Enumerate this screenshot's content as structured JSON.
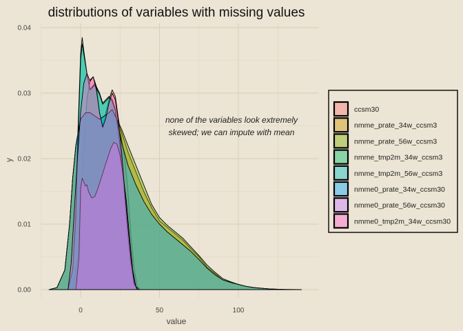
{
  "chart_data": {
    "type": "area",
    "title": "distributions of variables with missing values",
    "xlabel": "value",
    "ylabel": "y",
    "xlim": [
      -25,
      145
    ],
    "ylim": [
      0,
      0.041
    ],
    "xticks": [
      "0",
      "50",
      "100"
    ],
    "xtick_values": [
      0,
      50,
      100
    ],
    "yticks": [
      "0.00",
      "0.01",
      "0.02",
      "0.03",
      "0.04"
    ],
    "ytick_values": [
      0,
      0.01,
      0.02,
      0.03,
      0.04
    ],
    "grid": true,
    "legend_position": "right",
    "annotation": [
      "none of the variables look extremely",
      "skewed; we can impute with mean"
    ],
    "series": [
      {
        "name": "ccsm30",
        "color": "#f8766d",
        "points": [
          [
            -5,
            0
          ],
          [
            -2,
            0.004
          ],
          [
            0,
            0.012
          ],
          [
            2,
            0.022
          ],
          [
            4,
            0.029
          ],
          [
            6,
            0.032
          ],
          [
            8,
            0.0325
          ],
          [
            10,
            0.031
          ],
          [
            12,
            0.027
          ],
          [
            14,
            0.025
          ],
          [
            16,
            0.027
          ],
          [
            18,
            0.029
          ],
          [
            20,
            0.0305
          ],
          [
            22,
            0.0295
          ],
          [
            24,
            0.026
          ],
          [
            26,
            0.023
          ],
          [
            28,
            0.02
          ],
          [
            30,
            0.015
          ],
          [
            32,
            0.008
          ],
          [
            34,
            0.003
          ],
          [
            36,
            0.0005
          ],
          [
            38,
            0
          ]
        ]
      },
      {
        "name": "nmme_prate_34w_ccsm3",
        "color": "#cd9600",
        "points": [
          [
            -20,
            0
          ],
          [
            -15,
            0.0003
          ],
          [
            -10,
            0.003
          ],
          [
            -7,
            0.01
          ],
          [
            -5,
            0.017
          ],
          [
            -3,
            0.022
          ],
          [
            0,
            0.026
          ],
          [
            3,
            0.027
          ],
          [
            6,
            0.027
          ],
          [
            9,
            0.0265
          ],
          [
            12,
            0.026
          ],
          [
            15,
            0.0265
          ],
          [
            18,
            0.027
          ],
          [
            20,
            0.0275
          ],
          [
            23,
            0.026
          ],
          [
            26,
            0.024
          ],
          [
            30,
            0.021
          ],
          [
            35,
            0.018
          ],
          [
            40,
            0.015
          ],
          [
            45,
            0.0125
          ],
          [
            50,
            0.0105
          ],
          [
            55,
            0.0095
          ],
          [
            60,
            0.0085
          ],
          [
            65,
            0.0075
          ],
          [
            70,
            0.0062
          ],
          [
            75,
            0.005
          ],
          [
            80,
            0.0035
          ],
          [
            85,
            0.0025
          ],
          [
            90,
            0.0015
          ],
          [
            95,
            0.0011
          ],
          [
            100,
            0.0008
          ],
          [
            105,
            0.0005
          ],
          [
            110,
            0.0003
          ],
          [
            115,
            0.0002
          ],
          [
            120,
            0.0001
          ],
          [
            125,
            5e-05
          ],
          [
            130,
            2e-05
          ],
          [
            140,
            0
          ]
        ]
      },
      {
        "name": "nmme_prate_56w_ccsm3",
        "color": "#7cae00",
        "points": [
          [
            -20,
            0
          ],
          [
            -15,
            0.0003
          ],
          [
            -10,
            0.003
          ],
          [
            -7,
            0.01
          ],
          [
            -5,
            0.017
          ],
          [
            -3,
            0.022
          ],
          [
            0,
            0.026
          ],
          [
            3,
            0.027
          ],
          [
            6,
            0.027
          ],
          [
            9,
            0.0265
          ],
          [
            12,
            0.026
          ],
          [
            15,
            0.0265
          ],
          [
            18,
            0.027
          ],
          [
            20,
            0.0275
          ],
          [
            23,
            0.026
          ],
          [
            26,
            0.0245
          ],
          [
            30,
            0.022
          ],
          [
            35,
            0.019
          ],
          [
            40,
            0.016
          ],
          [
            45,
            0.013
          ],
          [
            50,
            0.011
          ],
          [
            55,
            0.0098
          ],
          [
            60,
            0.0088
          ],
          [
            65,
            0.0078
          ],
          [
            70,
            0.0065
          ],
          [
            75,
            0.0052
          ],
          [
            80,
            0.0038
          ],
          [
            85,
            0.0027
          ],
          [
            90,
            0.0017
          ],
          [
            95,
            0.0012
          ],
          [
            100,
            0.0008
          ],
          [
            105,
            0.0005
          ],
          [
            110,
            0.0003
          ],
          [
            115,
            0.0002
          ],
          [
            120,
            0.0001
          ],
          [
            125,
            5e-05
          ],
          [
            130,
            2e-05
          ],
          [
            140,
            0
          ]
        ]
      },
      {
        "name": "nmme_tmp2m_34w_ccsm3",
        "color": "#00be67",
        "points": [
          [
            -8,
            0
          ],
          [
            -5,
            0.003
          ],
          [
            -3,
            0.012
          ],
          [
            -2,
            0.022
          ],
          [
            -1,
            0.029
          ],
          [
            0,
            0.036
          ],
          [
            1,
            0.0385
          ],
          [
            2,
            0.0365
          ],
          [
            4,
            0.033
          ],
          [
            6,
            0.0305
          ],
          [
            9,
            0.0315
          ],
          [
            12,
            0.03
          ],
          [
            14,
            0.0285
          ],
          [
            16,
            0.029
          ],
          [
            18,
            0.0295
          ],
          [
            20,
            0.029
          ],
          [
            22,
            0.0275
          ],
          [
            24,
            0.024
          ],
          [
            26,
            0.0195
          ],
          [
            28,
            0.014
          ],
          [
            30,
            0.008
          ],
          [
            32,
            0.0035
          ],
          [
            34,
            0.0008
          ],
          [
            36,
            0
          ]
        ]
      },
      {
        "name": "nmme_tmp2m_56w_ccsm3",
        "color": "#00bfc4",
        "points": [
          [
            -8,
            0
          ],
          [
            -5,
            0.003
          ],
          [
            -3,
            0.011
          ],
          [
            -2,
            0.02
          ],
          [
            -1,
            0.028
          ],
          [
            0,
            0.035
          ],
          [
            1,
            0.0375
          ],
          [
            2,
            0.036
          ],
          [
            4,
            0.033
          ],
          [
            6,
            0.0305
          ],
          [
            9,
            0.0312
          ],
          [
            12,
            0.0298
          ],
          [
            14,
            0.0283
          ],
          [
            16,
            0.0288
          ],
          [
            18,
            0.0293
          ],
          [
            20,
            0.0288
          ],
          [
            22,
            0.0273
          ],
          [
            24,
            0.0238
          ],
          [
            26,
            0.0193
          ],
          [
            28,
            0.0138
          ],
          [
            30,
            0.0078
          ],
          [
            32,
            0.0034
          ],
          [
            34,
            0.0008
          ],
          [
            36,
            0
          ]
        ]
      },
      {
        "name": "nmme0_prate_34w_ccsm30",
        "color": "#00a9ff",
        "points": [
          [
            -20,
            0
          ],
          [
            -15,
            0.0003
          ],
          [
            -10,
            0.003
          ],
          [
            -7,
            0.01
          ],
          [
            -5,
            0.017
          ],
          [
            -3,
            0.022
          ],
          [
            0,
            0.026
          ],
          [
            3,
            0.027
          ],
          [
            6,
            0.027
          ],
          [
            9,
            0.0265
          ],
          [
            12,
            0.026
          ],
          [
            15,
            0.0265
          ],
          [
            18,
            0.027
          ],
          [
            20,
            0.0275
          ],
          [
            23,
            0.026
          ],
          [
            26,
            0.0225
          ],
          [
            30,
            0.019
          ],
          [
            35,
            0.016
          ],
          [
            40,
            0.0135
          ],
          [
            45,
            0.0115
          ],
          [
            50,
            0.01
          ],
          [
            55,
            0.0088
          ],
          [
            60,
            0.0078
          ],
          [
            65,
            0.0068
          ],
          [
            70,
            0.0058
          ],
          [
            75,
            0.0046
          ],
          [
            80,
            0.0033
          ],
          [
            85,
            0.0023
          ],
          [
            90,
            0.0015
          ],
          [
            95,
            0.0011
          ],
          [
            100,
            0.0008
          ],
          [
            105,
            0.0005
          ],
          [
            110,
            0.0003
          ],
          [
            115,
            0.0002
          ],
          [
            120,
            0.0001
          ],
          [
            125,
            5e-05
          ],
          [
            130,
            2e-05
          ],
          [
            140,
            0
          ]
        ]
      },
      {
        "name": "nmme0_prate_56w_ccsm30",
        "color": "#c77cff",
        "points": [
          [
            -3,
            0
          ],
          [
            -1,
            0.005
          ],
          [
            0,
            0.0155
          ],
          [
            1,
            0.017
          ],
          [
            2,
            0.0165
          ],
          [
            3,
            0.0158
          ],
          [
            4,
            0.016
          ],
          [
            5,
            0.015
          ],
          [
            7,
            0.014
          ],
          [
            9,
            0.0142
          ],
          [
            11,
            0.0155
          ],
          [
            13,
            0.017
          ],
          [
            15,
            0.0185
          ],
          [
            17,
            0.02
          ],
          [
            19,
            0.0215
          ],
          [
            21,
            0.0225
          ],
          [
            23,
            0.0222
          ],
          [
            25,
            0.0205
          ],
          [
            27,
            0.0175
          ],
          [
            29,
            0.0135
          ],
          [
            31,
            0.008
          ],
          [
            33,
            0.003
          ],
          [
            35,
            0.0005
          ],
          [
            37,
            0
          ]
        ]
      },
      {
        "name": "nmme0_tmp2m_34w_ccsm30",
        "color": "#ff61cc",
        "points": [
          [
            -8,
            0
          ],
          [
            -6,
            0.004
          ],
          [
            -4,
            0.012
          ],
          [
            -2,
            0.02
          ],
          [
            0,
            0.027
          ],
          [
            2,
            0.0315
          ],
          [
            4,
            0.033
          ],
          [
            6,
            0.0318
          ],
          [
            8,
            0.0325
          ],
          [
            10,
            0.0305
          ],
          [
            12,
            0.027
          ],
          [
            14,
            0.0248
          ],
          [
            16,
            0.0262
          ],
          [
            18,
            0.0285
          ],
          [
            20,
            0.03
          ],
          [
            22,
            0.029
          ],
          [
            24,
            0.0255
          ],
          [
            26,
            0.021
          ],
          [
            28,
            0.015
          ],
          [
            30,
            0.0095
          ],
          [
            32,
            0.0045
          ],
          [
            34,
            0.001
          ],
          [
            36,
            0
          ]
        ]
      }
    ]
  }
}
